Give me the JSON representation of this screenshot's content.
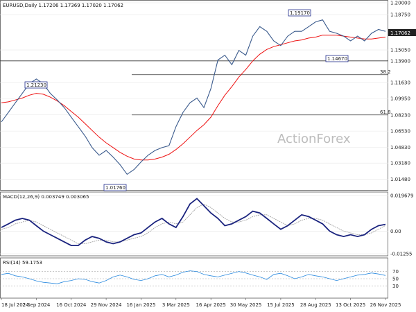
{
  "chart_data": [
    {
      "type": "line",
      "title": "EURUSD,Daily  1.17206  1.17369  1.17020  1.17062",
      "xlabel": "",
      "ylabel": "",
      "ylim": [
        1.005,
        2.0
      ],
      "yticks": [
        "1.20000",
        "1.18750",
        "1.15050",
        "1.13900",
        "1.11630",
        "1.09950",
        "1.08230",
        "1.06530",
        "1.04830",
        "1.03180",
        "1.01480"
      ],
      "current_price": "1.17062",
      "levels": [
        {
          "label": "1.13900",
          "value": 1.139
        },
        {
          "label": "38.2",
          "value": 1.1245
        },
        {
          "label": "61.8",
          "value": 1.0823
        }
      ],
      "annotations": [
        "1.21230",
        "1.19170",
        "1.14670",
        "1.01760"
      ],
      "watermark": "ActionForex",
      "series": [
        {
          "name": "price",
          "values": [
            1.075,
            1.085,
            1.095,
            1.105,
            1.115,
            1.12,
            1.115,
            1.105,
            1.098,
            1.09,
            1.08,
            1.07,
            1.06,
            1.048,
            1.04,
            1.045,
            1.038,
            1.03,
            1.02,
            1.025,
            1.033,
            1.04,
            1.045,
            1.048,
            1.05,
            1.07,
            1.085,
            1.095,
            1.1,
            1.09,
            1.11,
            1.14,
            1.145,
            1.135,
            1.15,
            1.145,
            1.165,
            1.175,
            1.17,
            1.16,
            1.155,
            1.165,
            1.17,
            1.17,
            1.175,
            1.18,
            1.182,
            1.17,
            1.168,
            1.165,
            1.16,
            1.165,
            1.16,
            1.168,
            1.172,
            1.17
          ]
        },
        {
          "name": "ma",
          "values": [
            1.095,
            1.096,
            1.098,
            1.1,
            1.103,
            1.105,
            1.104,
            1.101,
            1.097,
            1.092,
            1.086,
            1.08,
            1.073,
            1.066,
            1.059,
            1.053,
            1.048,
            1.043,
            1.039,
            1.036,
            1.035,
            1.035,
            1.036,
            1.038,
            1.041,
            1.046,
            1.052,
            1.059,
            1.066,
            1.072,
            1.08,
            1.092,
            1.103,
            1.112,
            1.122,
            1.13,
            1.139,
            1.146,
            1.151,
            1.154,
            1.156,
            1.158,
            1.16,
            1.161,
            1.163,
            1.164,
            1.166,
            1.166,
            1.166,
            1.165,
            1.164,
            1.163,
            1.162,
            1.162,
            1.163,
            1.164
          ]
        }
      ]
    },
    {
      "type": "line",
      "title": "MACD(12,26,9) 0.003749 0.003065",
      "ylim": [
        -0.01255,
        0.01967
      ],
      "yticks": [
        "0.019679",
        "0.00",
        "-0.01255"
      ],
      "series": [
        {
          "name": "macd",
          "values": [
            0.002,
            0.004,
            0.006,
            0.007,
            0.006,
            0.003,
            0.0,
            -0.002,
            -0.004,
            -0.006,
            -0.008,
            -0.008,
            -0.005,
            -0.003,
            -0.004,
            -0.006,
            -0.007,
            -0.006,
            -0.004,
            -0.002,
            -0.001,
            0.002,
            0.005,
            0.007,
            0.004,
            0.002,
            0.008,
            0.015,
            0.018,
            0.014,
            0.01,
            0.007,
            0.003,
            0.004,
            0.006,
            0.008,
            0.011,
            0.01,
            0.007,
            0.004,
            0.001,
            0.003,
            0.006,
            0.009,
            0.008,
            0.006,
            0.004,
            0.0,
            -0.002,
            -0.003,
            -0.002,
            -0.003,
            -0.002,
            0.001,
            0.003,
            0.0037
          ]
        },
        {
          "name": "signal",
          "values": [
            0.001,
            0.002,
            0.004,
            0.005,
            0.006,
            0.005,
            0.003,
            0.001,
            -0.001,
            -0.003,
            -0.005,
            -0.007,
            -0.007,
            -0.006,
            -0.005,
            -0.005,
            -0.006,
            -0.006,
            -0.005,
            -0.004,
            -0.003,
            -0.001,
            0.002,
            0.004,
            0.005,
            0.004,
            0.005,
            0.009,
            0.013,
            0.015,
            0.013,
            0.01,
            0.007,
            0.005,
            0.005,
            0.006,
            0.008,
            0.009,
            0.009,
            0.007,
            0.005,
            0.003,
            0.004,
            0.006,
            0.007,
            0.007,
            0.006,
            0.004,
            0.002,
            0.0,
            -0.001,
            -0.002,
            -0.002,
            -0.001,
            0.001,
            0.0031
          ]
        }
      ]
    },
    {
      "type": "line",
      "title": "RSI(14) 59.1753",
      "ylim": [
        0,
        100
      ],
      "yticks": [
        "70",
        "50",
        "30"
      ],
      "series": [
        {
          "name": "rsi",
          "values": [
            62,
            65,
            58,
            55,
            50,
            44,
            40,
            38,
            36,
            42,
            45,
            50,
            48,
            42,
            38,
            45,
            55,
            60,
            55,
            48,
            45,
            50,
            58,
            62,
            55,
            60,
            68,
            72,
            70,
            62,
            58,
            55,
            60,
            65,
            70,
            66,
            60,
            55,
            48,
            62,
            65,
            58,
            50,
            55,
            62,
            58,
            55,
            50,
            45,
            50,
            55,
            60,
            62,
            66,
            63,
            59
          ]
        }
      ]
    }
  ],
  "xaxis": {
    "ticks": [
      "18 Jul 2024",
      "2 Sep 2024",
      "16 Oct 2024",
      "29 Nov 2024",
      "16 Jan 2025",
      "3 Mar 2025",
      "16 Apr 2025",
      "30 May 2025",
      "15 Jul 2025",
      "28 Aug 2025",
      "13 Oct 2025",
      "26 Nov 2025"
    ]
  }
}
